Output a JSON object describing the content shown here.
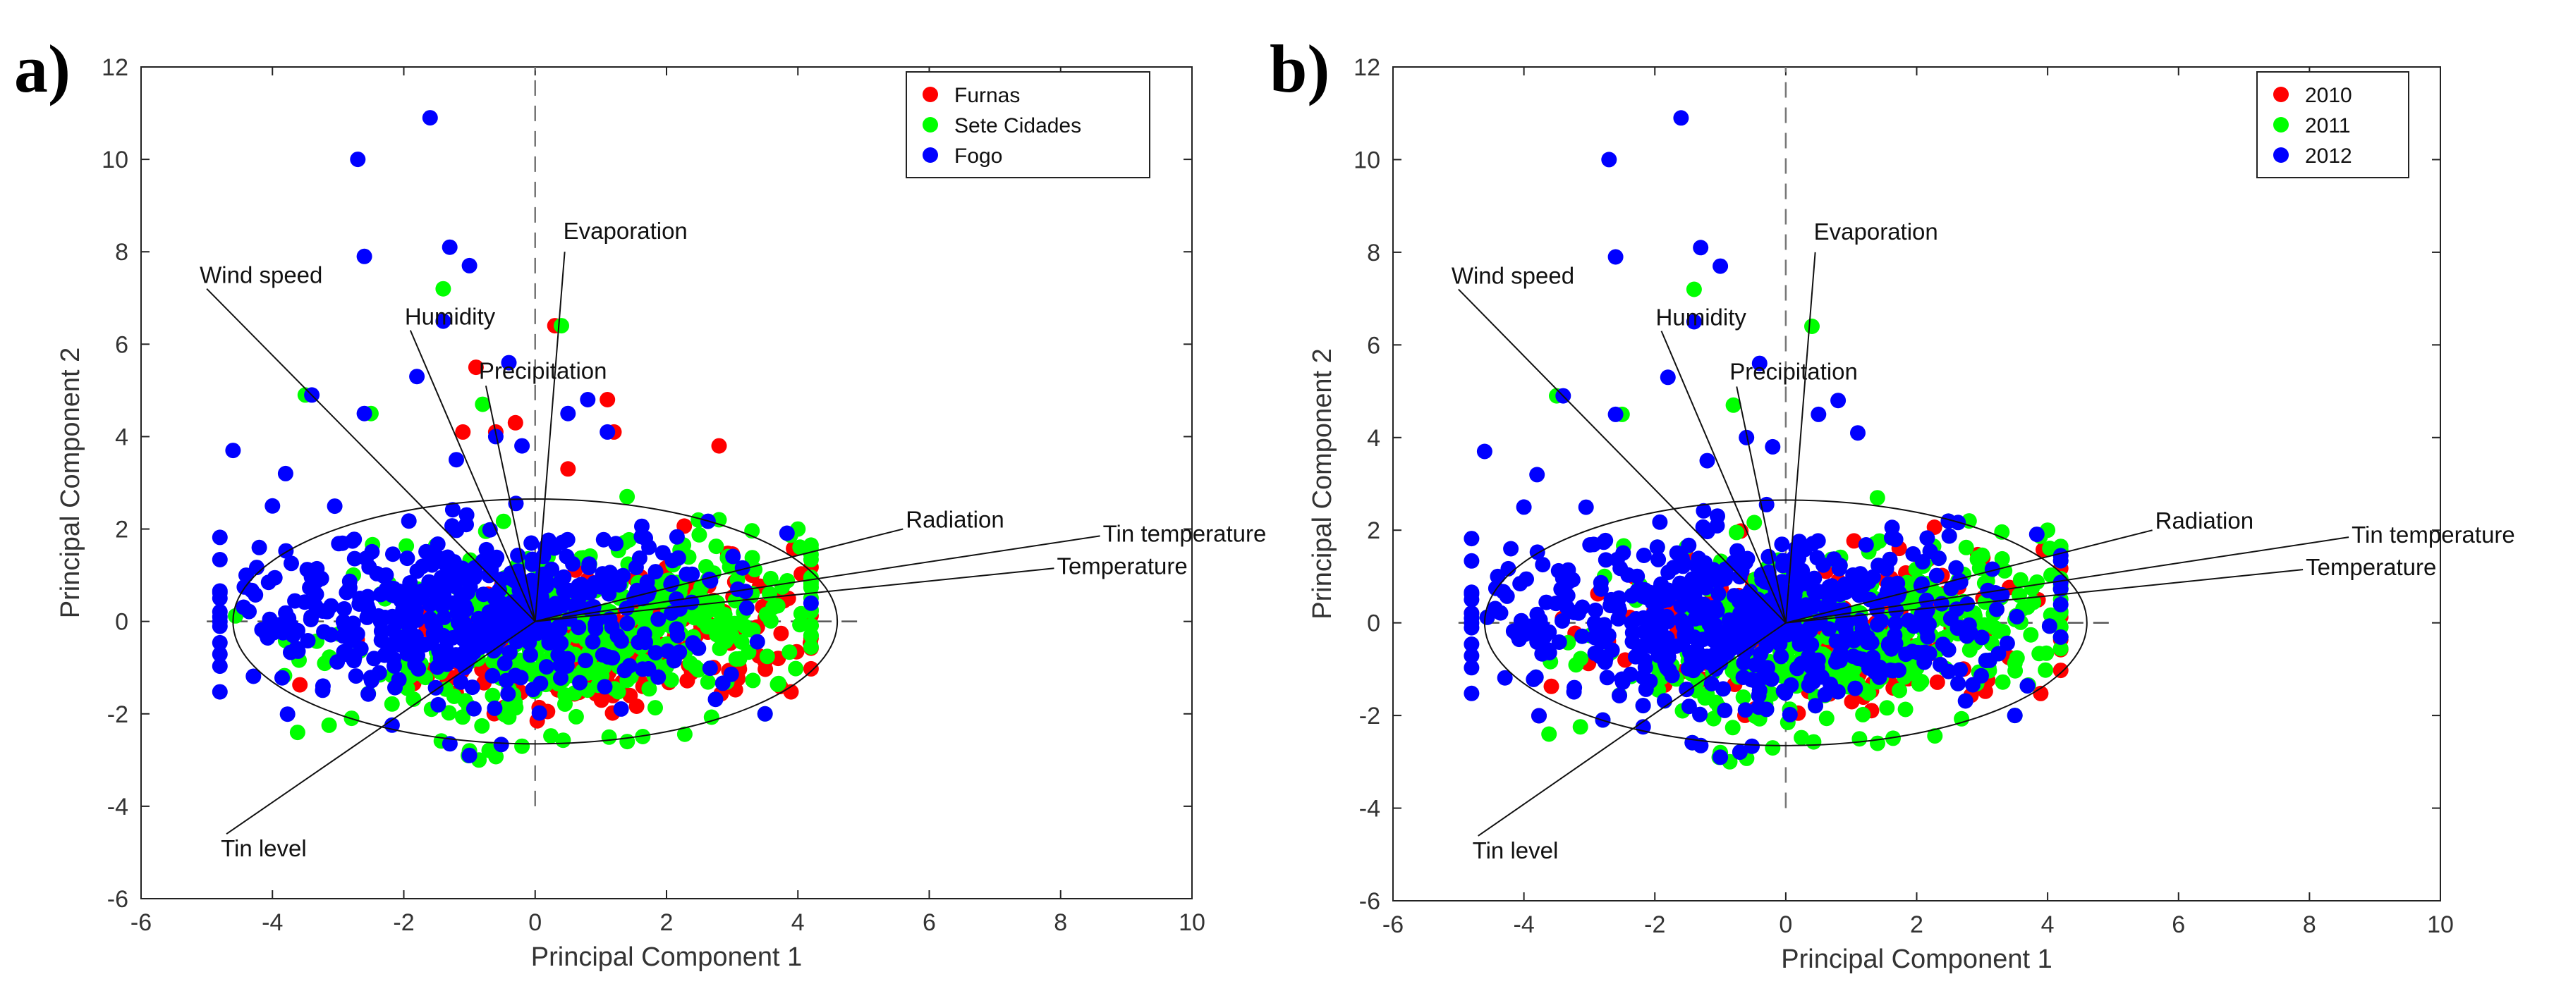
{
  "chart_data": [
    {
      "panel_label": "a)",
      "type": "scatter",
      "xlabel": "Principal Component 1",
      "ylabel": "Principal Component 2",
      "xlim": [
        -6,
        10
      ],
      "ylim": [
        -6,
        12
      ],
      "xticks": [
        -6,
        -4,
        -2,
        0,
        2,
        4,
        6,
        8,
        10
      ],
      "yticks": [
        -6,
        -4,
        -2,
        0,
        2,
        4,
        6,
        8,
        10,
        12
      ],
      "legend_position": "top-right",
      "zero_lines": "dashed",
      "ellipse": {
        "center": [
          0,
          0
        ],
        "rx": 4.6,
        "ry": 2.65
      },
      "vectors": [
        {
          "label": "Evaporation",
          "x": 0.45,
          "y": 8.0
        },
        {
          "label": "Wind speed",
          "x": -5.0,
          "y": 7.2
        },
        {
          "label": "Humidity",
          "x": -1.9,
          "y": 6.3
        },
        {
          "label": "Precipitation",
          "x": -0.75,
          "y": 5.1
        },
        {
          "label": "Radiation",
          "x": 5.6,
          "y": 2.0
        },
        {
          "label": "Tin temperature",
          "x": 8.6,
          "y": 1.85
        },
        {
          "label": "Temperature",
          "x": 7.9,
          "y": 1.15
        },
        {
          "label": "Tin level",
          "x": -4.7,
          "y": -4.6
        }
      ],
      "series": [
        {
          "name": "Furnas",
          "color": "#ff0000"
        },
        {
          "name": "Sete Cidades",
          "color": "#00ff00"
        },
        {
          "name": "Fogo",
          "color": "#0000ff"
        }
      ]
    },
    {
      "panel_label": "b)",
      "type": "scatter",
      "xlabel": "Principal Component 1",
      "ylabel": "Principal Component 2",
      "xlim": [
        -6,
        10
      ],
      "ylim": [
        -6,
        12
      ],
      "xticks": [
        -6,
        -4,
        -2,
        0,
        2,
        4,
        6,
        8,
        10
      ],
      "yticks": [
        -6,
        -4,
        -2,
        0,
        2,
        4,
        6,
        8,
        10,
        12
      ],
      "legend_position": "top-right",
      "zero_lines": "dashed",
      "ellipse": {
        "center": [
          0,
          0
        ],
        "rx": 4.6,
        "ry": 2.65
      },
      "vectors": [
        {
          "label": "Evaporation",
          "x": 0.45,
          "y": 8.0
        },
        {
          "label": "Wind speed",
          "x": -5.0,
          "y": 7.2
        },
        {
          "label": "Humidity",
          "x": -1.9,
          "y": 6.3
        },
        {
          "label": "Precipitation",
          "x": -0.75,
          "y": 5.1
        },
        {
          "label": "Radiation",
          "x": 5.6,
          "y": 2.0
        },
        {
          "label": "Tin temperature",
          "x": 8.6,
          "y": 1.85
        },
        {
          "label": "Temperature",
          "x": 7.9,
          "y": 1.15
        },
        {
          "label": "Tin level",
          "x": -4.7,
          "y": -4.6
        }
      ],
      "series": [
        {
          "name": "2010",
          "color": "#ff0000"
        },
        {
          "name": "2011",
          "color": "#00ff00"
        },
        {
          "name": "2012",
          "color": "#0000ff"
        }
      ]
    }
  ]
}
